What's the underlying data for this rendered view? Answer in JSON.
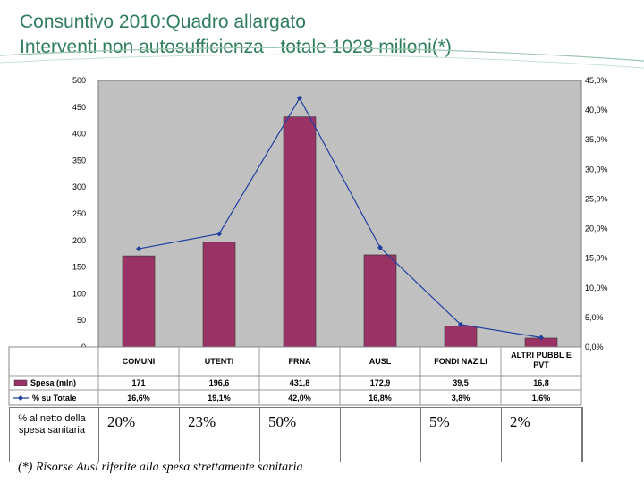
{
  "title": {
    "line1": "Consuntivo 2010:Quadro allargato",
    "line2": "Interventi non autosufficienza -  totale 1028 milioni(*)"
  },
  "chart_data": {
    "type": "bar",
    "categories": [
      "COMUNI",
      "UTENTI",
      "FRNA",
      "AUSL",
      "FONDI NAZ.LI",
      "ALTRI PUBBL E PVT"
    ],
    "series": [
      {
        "name": "Spesa (mln)",
        "kind": "bar",
        "axis": "left",
        "color": "#993366",
        "values": [
          171,
          196.6,
          431.8,
          172.9,
          39.5,
          16.8
        ],
        "labels": [
          "171",
          "196,6",
          "431,8",
          "172,9",
          "39,5",
          "16,8"
        ]
      },
      {
        "name": "% su Totale",
        "kind": "line",
        "axis": "right",
        "color": "#1f3fa0",
        "values": [
          16.6,
          19.1,
          42.0,
          16.8,
          3.8,
          1.6
        ],
        "labels": [
          "16,6%",
          "19,1%",
          "42,0%",
          "16,8%",
          "3,8%",
          "1,6%"
        ]
      }
    ],
    "y_left": {
      "min": 0,
      "max": 500,
      "ticks": [
        "0",
        "50",
        "100",
        "150",
        "200",
        "250",
        "300",
        "350",
        "400",
        "450",
        "500"
      ]
    },
    "y_right": {
      "min": 0,
      "max": 45,
      "ticks": [
        "0,0%",
        "5,0%",
        "10,0%",
        "15,0%",
        "20,0%",
        "25,0%",
        "30,0%",
        "35,0%",
        "40,0%",
        "45,0%"
      ]
    },
    "plot_background": "#c0c0c0"
  },
  "extra_row": {
    "label": "% al netto della spesa sanitaria",
    "values": [
      "20%",
      "23%",
      "50%",
      "",
      "5%",
      "2%"
    ]
  },
  "footnote": "(*) Risorse Ausl riferite alla spesa strettamente sanitaria",
  "accent_color": "#2e7d5b"
}
